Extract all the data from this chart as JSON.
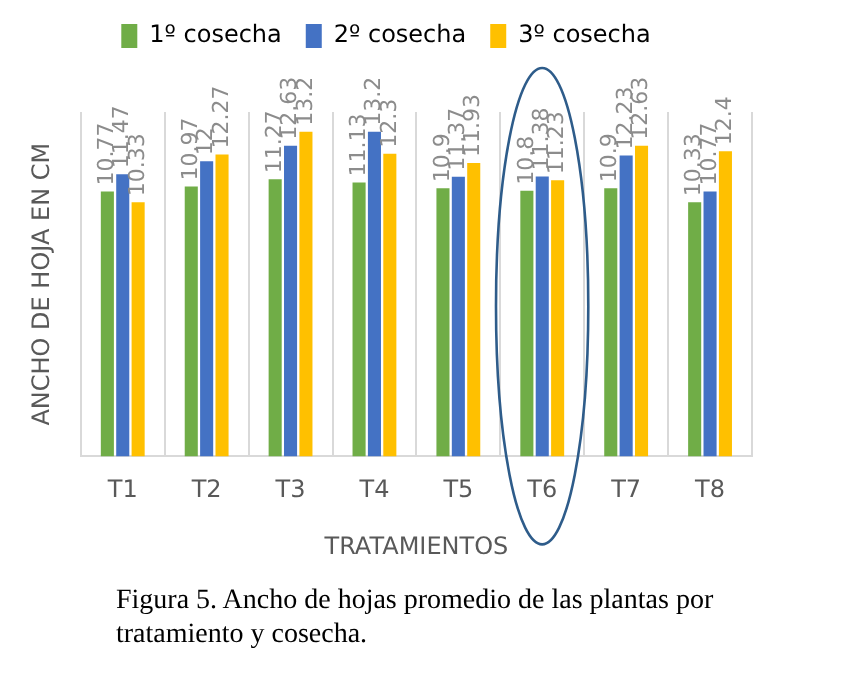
{
  "chart_data": {
    "type": "bar",
    "xlabel": "TRATAMIENTOS",
    "ylabel": "ANCHO DE HOJA EN CM",
    "categories": [
      "T1",
      "T2",
      "T3",
      "T4",
      "T5",
      "T6",
      "T7",
      "T8"
    ],
    "series": [
      {
        "name": "1º cosecha",
        "color": "#70ad47",
        "values": [
          10.77,
          10.97,
          11.27,
          11.13,
          10.9,
          10.8,
          10.9,
          10.33
        ]
      },
      {
        "name": "2º cosecha",
        "color": "#4472c4",
        "values": [
          11.47,
          12,
          12.63,
          13.2,
          11.37,
          11.38,
          12.23,
          10.77
        ]
      },
      {
        "name": "3º cosecha",
        "color": "#ffc000",
        "values": [
          10.33,
          12.27,
          13.2,
          12.3,
          11.93,
          11.23,
          12.63,
          12.4
        ]
      }
    ],
    "ylim": [
      0,
      14
    ],
    "tick_labels": "x",
    "grid": "x",
    "legend": "top",
    "data_labels": true,
    "annotations": [
      "Figura 5. Ancho de hojas promedio de las plantas por tratamiento y cosecha."
    ]
  }
}
